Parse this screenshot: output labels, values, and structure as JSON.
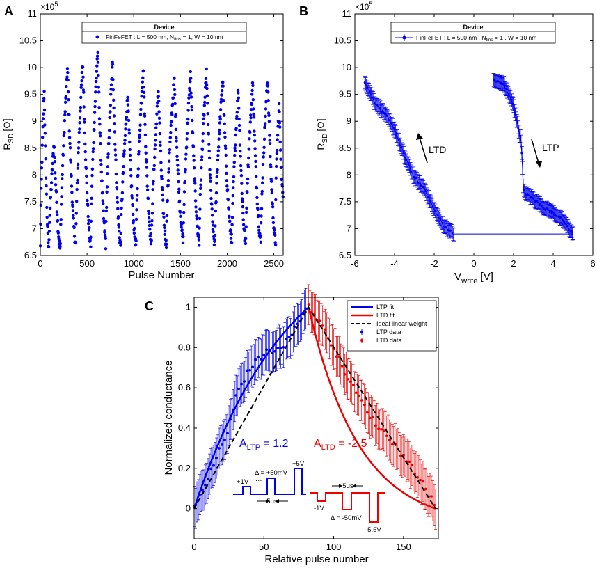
{
  "chart_data": [
    {
      "panel": "A",
      "type": "scatter",
      "xlabel": "Pulse Number",
      "ylabel": "R",
      "ylabel_sub": "SD",
      "ylabel_unit": "[Ω]",
      "exponent": "×10",
      "exponent_power": "5",
      "xlim": [
        0,
        2600
      ],
      "ylim": [
        6.5,
        11
      ],
      "xticks": [
        0,
        500,
        1000,
        1500,
        2000,
        2500
      ],
      "yticks": [
        6.5,
        7,
        7.5,
        8,
        8.5,
        9,
        9.5,
        10,
        10.5,
        11
      ],
      "legend_title": "Device",
      "legend_label": {
        "pre": "FinFeFET : L = 500 nm, N",
        "sub": "fins",
        "post": " = 1, W = 10 nm"
      },
      "series_color": "#0000ee",
      "cycles": [
        {
          "start": 0,
          "end": 90,
          "max": 9.6,
          "min": 6.65
        },
        {
          "start": 90,
          "end": 215,
          "max": 8.6,
          "min": 6.6
        },
        {
          "start": 215,
          "end": 380,
          "max": 10.0,
          "min": 6.7
        },
        {
          "start": 380,
          "end": 540,
          "max": 10.1,
          "min": 6.7
        },
        {
          "start": 540,
          "end": 700,
          "max": 10.3,
          "min": 6.8
        },
        {
          "start": 700,
          "end": 860,
          "max": 10.1,
          "min": 6.7
        },
        {
          "start": 860,
          "end": 1025,
          "max": 9.5,
          "min": 6.7
        },
        {
          "start": 1025,
          "end": 1190,
          "max": 10.0,
          "min": 6.75
        },
        {
          "start": 1190,
          "end": 1350,
          "max": 9.6,
          "min": 6.7
        },
        {
          "start": 1350,
          "end": 1530,
          "max": 9.8,
          "min": 6.8
        },
        {
          "start": 1530,
          "end": 1700,
          "max": 9.9,
          "min": 6.8
        },
        {
          "start": 1700,
          "end": 1870,
          "max": 9.9,
          "min": 6.7
        },
        {
          "start": 1870,
          "end": 2050,
          "max": 9.8,
          "min": 6.8
        },
        {
          "start": 2050,
          "end": 2200,
          "max": 9.6,
          "min": 6.7
        },
        {
          "start": 2200,
          "end": 2360,
          "max": 9.7,
          "min": 6.8
        },
        {
          "start": 2360,
          "end": 2520,
          "max": 9.8,
          "min": 6.75
        },
        {
          "start": 2520,
          "end": 2600,
          "max": 9.3,
          "min": 7.6
        }
      ]
    },
    {
      "panel": "B",
      "type": "line",
      "xlabel": "V",
      "xlabel_sub": "write",
      "xlabel_unit": " [V]",
      "ylabel": "R",
      "ylabel_sub": "SD",
      "ylabel_unit": "[Ω]",
      "exponent": "×10",
      "exponent_power": "5",
      "xlim": [
        -6,
        6
      ],
      "ylim": [
        6.5,
        11
      ],
      "xticks": [
        -6,
        -4,
        -2,
        0,
        2,
        4,
        6
      ],
      "yticks": [
        6.5,
        7,
        7.5,
        8,
        8.5,
        9,
        9.5,
        10,
        10.5,
        11
      ],
      "legend_title": "Device",
      "legend_label": {
        "pre": "FinFeFET : L = 500 nm , N",
        "sub": "fins",
        "post": " = 1 , W = 10 nm"
      },
      "ltd_label": "LTD",
      "ltp_label": "LTP",
      "series_color": "#0000ee",
      "ltd_branch": {
        "x": [
          -1.0,
          -1.5,
          -2.0,
          -2.5,
          -3.0,
          -3.5,
          -4.0,
          -4.5,
          -5.0,
          -5.5
        ],
        "y": [
          6.9,
          7.05,
          7.35,
          7.75,
          7.95,
          8.35,
          8.85,
          9.15,
          9.35,
          9.75
        ]
      },
      "ltp_branch": {
        "x": [
          1.0,
          1.5,
          2.0,
          2.4,
          2.5,
          3.0,
          3.5,
          4.0,
          4.5,
          5.0
        ],
        "y": [
          9.75,
          9.7,
          9.3,
          8.6,
          7.7,
          7.55,
          7.4,
          7.3,
          7.15,
          6.9
        ]
      },
      "connector": {
        "x": [
          -1.0,
          5.0
        ],
        "y": [
          6.9,
          6.9
        ]
      },
      "error": 0.12
    },
    {
      "panel": "C",
      "type": "line",
      "xlabel": "Relative pulse number",
      "ylabel": "Normalized conductance",
      "xlim": [
        0,
        175
      ],
      "ylim": [
        -0.15,
        1.05
      ],
      "xticks": [
        0,
        50,
        100,
        150
      ],
      "yticks": [
        0,
        0.2,
        0.4,
        0.6,
        0.8,
        1
      ],
      "legend": [
        "LTP fit",
        "LTD fit",
        "Ideal linear weight",
        "LTP data",
        "LTD data"
      ],
      "ltp_color": "#0000ee",
      "ltd_color": "#ee0000",
      "a_ltp": {
        "pre": "A",
        "sub": "LTP",
        "post": " = 1.2"
      },
      "a_ltd": {
        "pre": "A",
        "sub": "LTD",
        "post": " = -2.5"
      },
      "ltp_data": {
        "x": [
          0,
          10,
          20,
          25,
          30,
          35,
          40,
          50,
          60,
          65,
          70,
          75,
          80
        ],
        "y": [
          0.0,
          0.15,
          0.32,
          0.4,
          0.55,
          0.63,
          0.7,
          0.77,
          0.8,
          0.82,
          0.87,
          0.92,
          1.0
        ]
      },
      "ltd_data": {
        "x": [
          82,
          90,
          100,
          110,
          120,
          130,
          140,
          150,
          160,
          170,
          173
        ],
        "y": [
          1.0,
          0.93,
          0.8,
          0.65,
          0.53,
          0.42,
          0.35,
          0.26,
          0.17,
          0.05,
          0.0
        ]
      },
      "error": 0.1,
      "ltp_fit_A": 1.2,
      "ltd_fit_A": -2.5,
      "ltp_range": [
        0,
        82
      ],
      "ltd_range": [
        82,
        173
      ],
      "pulse_ltp": {
        "v1": "+1V",
        "delta": "Δ = +50mV",
        "dots": "···",
        "v5": "+5V",
        "width": "5μs"
      },
      "pulse_ltd": {
        "v1": "-1V",
        "delta": "Δ = -50mV",
        "dots": "···",
        "v5": "-5.5V",
        "width": "5μs"
      }
    }
  ],
  "panel_labels": [
    "A",
    "B",
    "C"
  ]
}
